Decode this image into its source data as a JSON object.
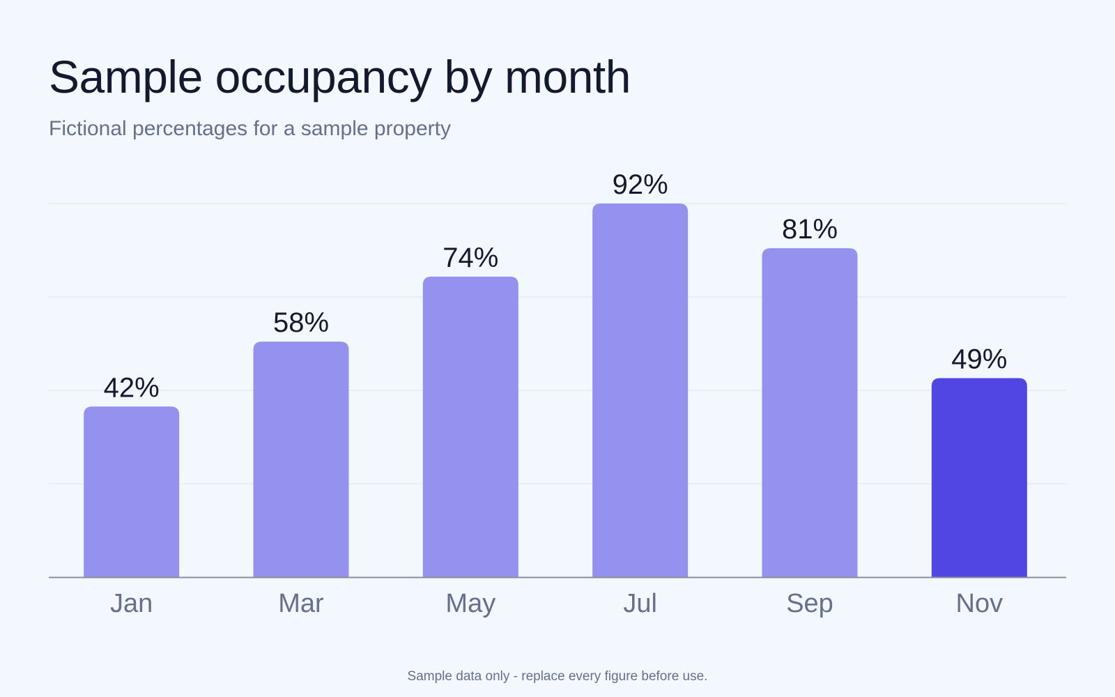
{
  "header": {
    "title": "Sample occupancy by month",
    "subtitle": "Fictional percentages for a sample property"
  },
  "footer": {
    "note": "Sample data only - replace every figure before use."
  },
  "colors": {
    "bar": "#9591ee",
    "highlight": "#5146e4",
    "grid": "#dde3ee",
    "axis": "#8a8f9c",
    "value_label": "#141a2e",
    "tick_label": "#66708c"
  },
  "chart_data": {
    "type": "bar",
    "title": "Sample occupancy by month",
    "subtitle": "Fictional percentages for a sample property",
    "categories": [
      "Jan",
      "Mar",
      "May",
      "Jul",
      "Sep",
      "Nov"
    ],
    "values": [
      42,
      58,
      74,
      92,
      81,
      49
    ],
    "value_labels": [
      "42%",
      "58%",
      "74%",
      "92%",
      "81%",
      "49%"
    ],
    "highlight_category": "Nov",
    "xlabel": "",
    "ylabel": "",
    "ylim": [
      0,
      92
    ],
    "grid": true,
    "legend": "none"
  }
}
